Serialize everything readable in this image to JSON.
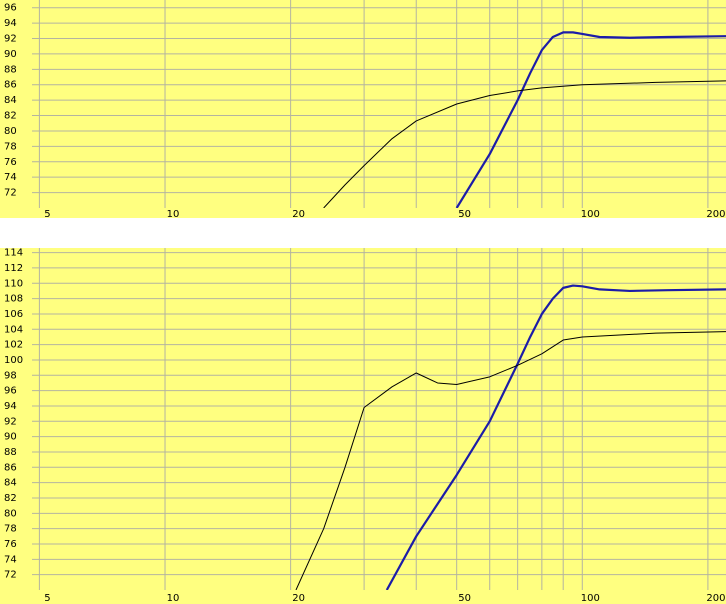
{
  "chart_data": [
    {
      "type": "line",
      "xscale": "log",
      "grid": true,
      "background": "#ffff80",
      "xlim": [
        4.8,
        221
      ],
      "xticks": [
        5,
        10,
        20,
        50,
        100,
        200
      ],
      "minor_xticks": [
        30,
        40,
        60,
        70,
        80,
        90
      ],
      "ylim": [
        70,
        97
      ],
      "yticks": [
        72,
        74,
        76,
        78,
        80,
        82,
        84,
        86,
        88,
        90,
        92,
        94,
        96
      ],
      "series": [
        {
          "color": "#1c1ca8",
          "width": 2.2,
          "x": [
            50,
            60,
            70,
            75,
            80,
            85,
            90,
            95,
            100,
            110,
            130,
            160,
            221
          ],
          "values": [
            70,
            77,
            84,
            87.5,
            90.5,
            92.2,
            92.8,
            92.8,
            92.6,
            92.2,
            92.1,
            92.2,
            92.3
          ]
        },
        {
          "color": "#000000",
          "width": 1,
          "x": [
            24,
            27,
            30,
            35,
            40,
            50,
            60,
            70,
            80,
            100,
            150,
            221
          ],
          "values": [
            70,
            73,
            75.5,
            79,
            81.3,
            83.5,
            84.6,
            85.2,
            85.6,
            86,
            86.3,
            86.5
          ]
        }
      ]
    },
    {
      "type": "line",
      "xscale": "log",
      "grid": true,
      "background": "#ffff80",
      "xlim": [
        4.8,
        221
      ],
      "xticks": [
        5,
        10,
        20,
        50,
        100,
        200
      ],
      "minor_xticks": [
        30,
        40,
        60,
        70,
        80,
        90
      ],
      "ylim": [
        70,
        114.6
      ],
      "yticks": [
        72,
        74,
        76,
        78,
        80,
        82,
        84,
        86,
        88,
        90,
        92,
        94,
        96,
        98,
        100,
        102,
        104,
        106,
        108,
        110,
        112,
        114
      ],
      "series": [
        {
          "color": "#1c1ca8",
          "width": 2.2,
          "x": [
            34,
            40,
            50,
            60,
            70,
            75,
            80,
            85,
            90,
            95,
            100,
            110,
            130,
            160,
            221
          ],
          "values": [
            70,
            77,
            85,
            92,
            99.5,
            103,
            106,
            108,
            109.4,
            109.7,
            109.6,
            109.2,
            109,
            109.1,
            109.2
          ]
        },
        {
          "color": "#000000",
          "width": 1,
          "x": [
            20.6,
            24,
            27,
            30,
            35,
            40,
            45,
            50,
            60,
            70,
            80,
            90,
            100,
            150,
            221
          ],
          "values": [
            70,
            78,
            86,
            93.8,
            96.5,
            98.3,
            97,
            96.8,
            97.8,
            99.3,
            100.8,
            102.6,
            103,
            103.5,
            103.7
          ]
        }
      ]
    }
  ]
}
